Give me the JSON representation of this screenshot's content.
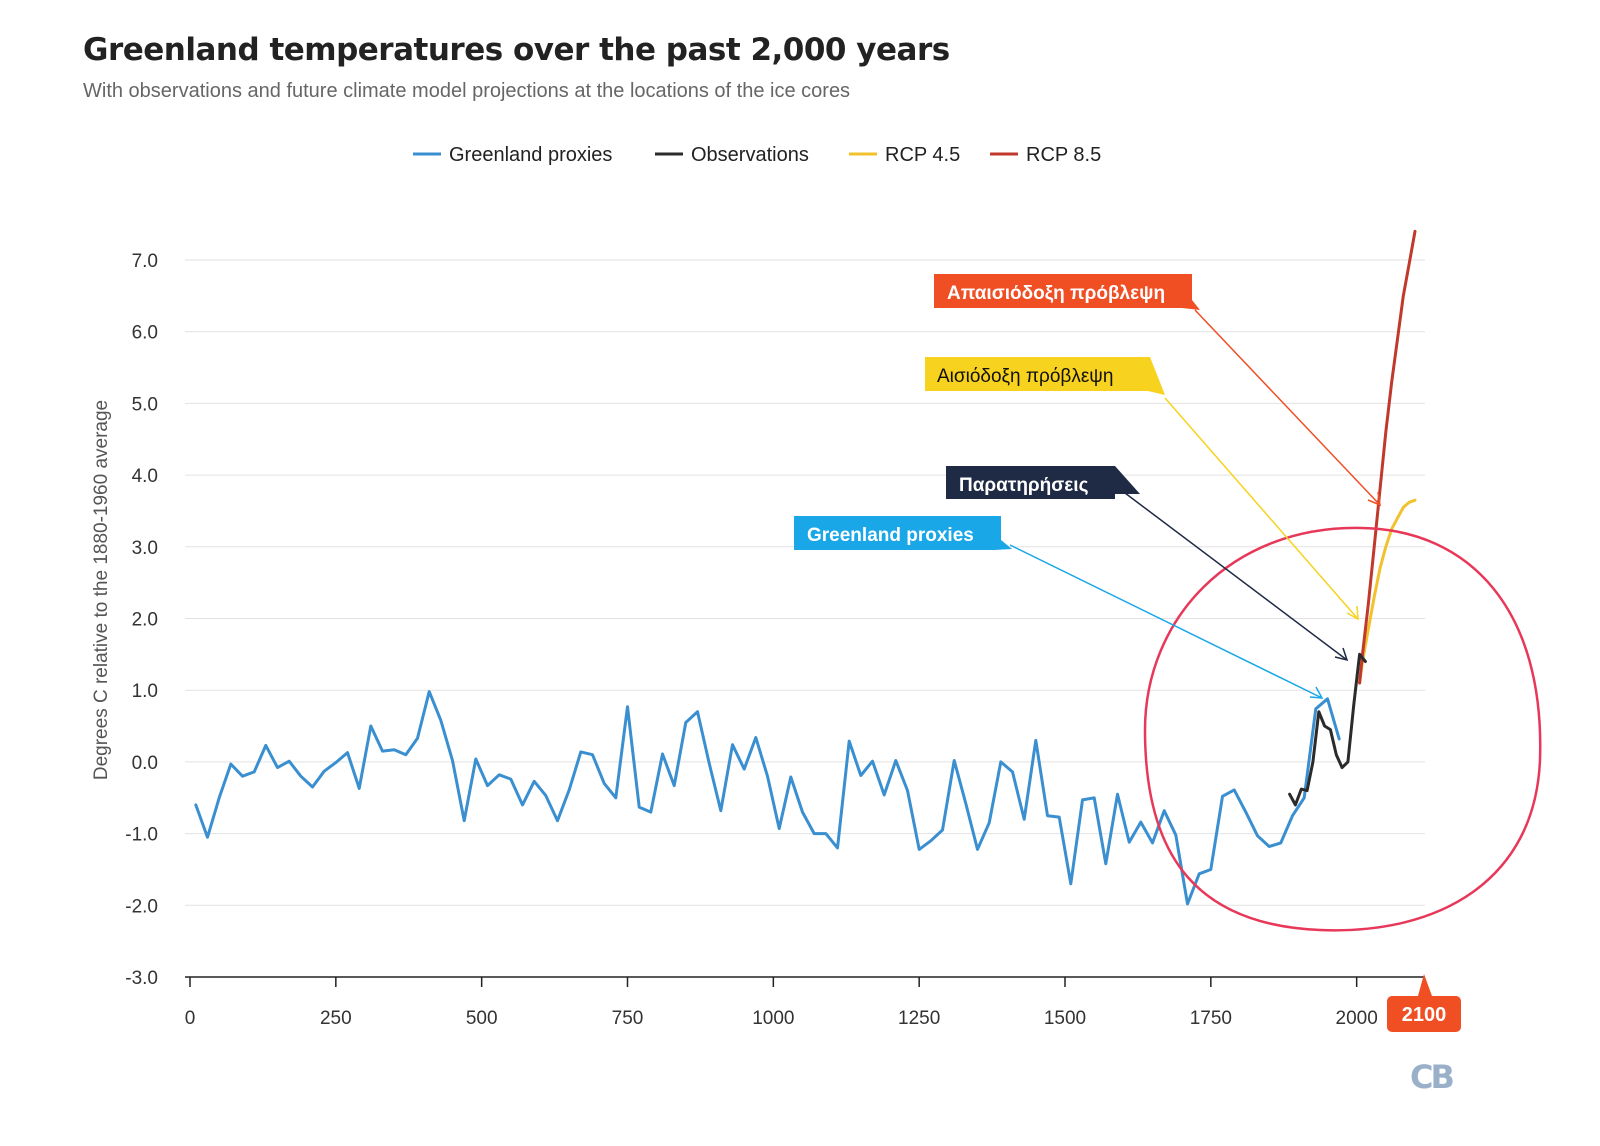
{
  "title": "Greenland temperatures over the past 2,000 years",
  "subtitle": "With observations and future climate model projections at the locations of the ice cores",
  "logo_text": "CB",
  "year_highlight": "2100",
  "colors": {
    "proxies": "#3a8fd0",
    "observations": "#2b2b2b",
    "rcp45": "#f2c12e",
    "rcp85": "#c0392b",
    "circle": "#e8385a",
    "callout_pessimistic": "#f04e23",
    "callout_optimistic": "#f7d21e",
    "callout_observations": "#1f2a44",
    "callout_proxies": "#1aa7e8",
    "highlight_badge": "#f04e23",
    "logo": "#9ab0c8"
  },
  "callouts": [
    {
      "id": "pessimistic",
      "label": "Απαισιόδοξη πρόβλεψη"
    },
    {
      "id": "optimistic",
      "label": "Αισιόδοξη πρόβλεψη"
    },
    {
      "id": "observations",
      "label": "Παρατηρήσεις"
    },
    {
      "id": "proxies",
      "label": "Greenland proxies"
    }
  ],
  "chart_data": {
    "type": "line",
    "title": "Greenland temperatures over the past 2,000 years",
    "subtitle": "With observations and future climate model projections at the locations of the ice cores",
    "xlabel": "",
    "ylabel": "Degrees C relative to the 1880-1960 average",
    "xlim": [
      0,
      2100
    ],
    "ylim": [
      -3.0,
      7.0
    ],
    "x_ticks": [
      "0",
      "250",
      "500",
      "750",
      "1000",
      "1250",
      "1500",
      "1750",
      "2000"
    ],
    "y_ticks": [
      "-3.0",
      "-2.0",
      "-1.0",
      "0.0",
      "1.0",
      "2.0",
      "3.0",
      "4.0",
      "5.0",
      "6.0",
      "7.0"
    ],
    "grid": true,
    "legend_position": "top",
    "series": [
      {
        "name": "Greenland proxies",
        "x": [
          10,
          30,
          50,
          70,
          90,
          110,
          130,
          150,
          170,
          190,
          210,
          230,
          250,
          270,
          290,
          310,
          330,
          350,
          370,
          390,
          410,
          430,
          450,
          470,
          490,
          510,
          530,
          550,
          570,
          590,
          610,
          630,
          650,
          670,
          690,
          710,
          730,
          750,
          770,
          790,
          810,
          830,
          850,
          870,
          890,
          910,
          930,
          950,
          970,
          990,
          1010,
          1030,
          1050,
          1070,
          1090,
          1110,
          1130,
          1150,
          1170,
          1190,
          1210,
          1230,
          1250,
          1270,
          1290,
          1310,
          1330,
          1350,
          1370,
          1390,
          1410,
          1430,
          1450,
          1470,
          1490,
          1510,
          1530,
          1550,
          1570,
          1590,
          1610,
          1630,
          1650,
          1670,
          1690,
          1710,
          1730,
          1750,
          1770,
          1790,
          1810,
          1830,
          1850,
          1870,
          1890,
          1910,
          1930,
          1950,
          1970
        ],
        "y": [
          -0.6,
          -1.05,
          -0.5,
          -0.03,
          -0.2,
          -0.14,
          0.23,
          -0.08,
          0.01,
          -0.2,
          -0.35,
          -0.13,
          -0.01,
          0.13,
          -0.37,
          0.5,
          0.15,
          0.17,
          0.1,
          0.33,
          0.98,
          0.58,
          0.02,
          -0.82,
          0.04,
          -0.33,
          -0.18,
          -0.24,
          -0.6,
          -0.27,
          -0.47,
          -0.82,
          -0.39,
          0.14,
          0.1,
          -0.3,
          -0.5,
          0.77,
          -0.63,
          -0.7,
          0.11,
          -0.33,
          0.55,
          0.7,
          -0.02,
          -0.68,
          0.24,
          -0.1,
          0.34,
          -0.2,
          -0.93,
          -0.21,
          -0.7,
          -1.0,
          -1.0,
          -1.2,
          0.29,
          -0.19,
          0.01,
          -0.46,
          0.02,
          -0.4,
          -1.22,
          -1.1,
          -0.95,
          0.02,
          -0.58,
          -1.22,
          -0.85,
          0.0,
          -0.14,
          -0.8,
          0.3,
          -0.75,
          -0.77,
          -1.7,
          -0.53,
          -0.5,
          -1.42,
          -0.45,
          -1.12,
          -0.84,
          -1.13,
          -0.68,
          -1.02,
          -1.98,
          -1.56,
          -1.5,
          -0.48,
          -0.39,
          -0.7,
          -1.03,
          -1.18,
          -1.13,
          -0.75,
          -0.5,
          0.74,
          0.88,
          0.32
        ]
      },
      {
        "name": "Observations",
        "x": [
          1885,
          1895,
          1905,
          1915,
          1925,
          1935,
          1945,
          1955,
          1965,
          1975,
          1985,
          1995,
          2005,
          2015
        ],
        "y": [
          -0.45,
          -0.6,
          -0.38,
          -0.4,
          0.0,
          0.7,
          0.5,
          0.45,
          0.1,
          -0.08,
          0.0,
          0.8,
          1.5,
          1.4
        ]
      },
      {
        "name": "RCP 4.5",
        "x": [
          2005,
          2010,
          2020,
          2030,
          2040,
          2050,
          2060,
          2070,
          2080,
          2090,
          2100
        ],
        "y": [
          1.1,
          1.4,
          1.85,
          2.3,
          2.7,
          3.0,
          3.25,
          3.4,
          3.55,
          3.62,
          3.65
        ]
      },
      {
        "name": "RCP 8.5",
        "x": [
          2005,
          2010,
          2020,
          2030,
          2040,
          2050,
          2060,
          2070,
          2080,
          2090,
          2100
        ],
        "y": [
          1.1,
          1.5,
          2.2,
          3.0,
          3.8,
          4.6,
          5.3,
          5.9,
          6.5,
          6.95,
          7.4
        ]
      }
    ]
  }
}
